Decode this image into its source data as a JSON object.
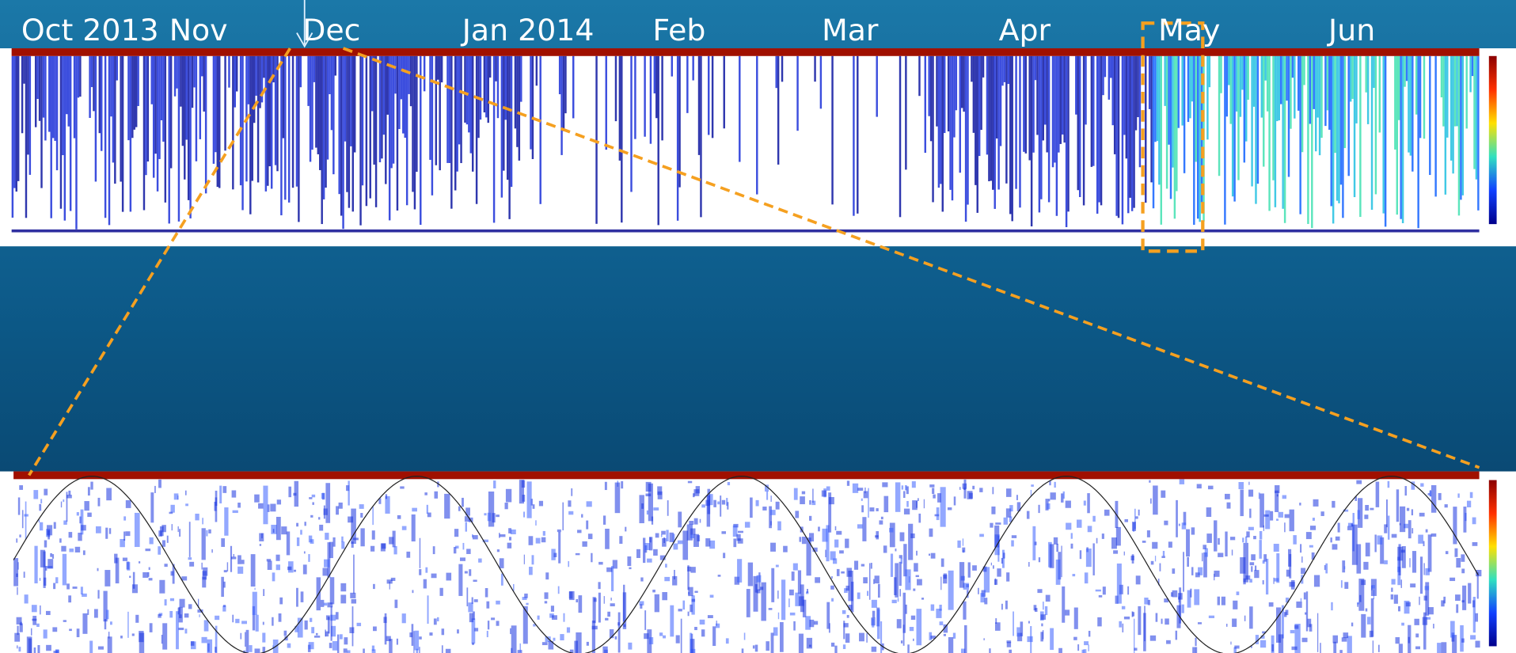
{
  "timeline": {
    "months": [
      "Oct 2013",
      "Nov",
      "Dec",
      "Jan 2014",
      "Feb",
      "Mar",
      "Apr",
      "May",
      "Jun"
    ]
  }
}
